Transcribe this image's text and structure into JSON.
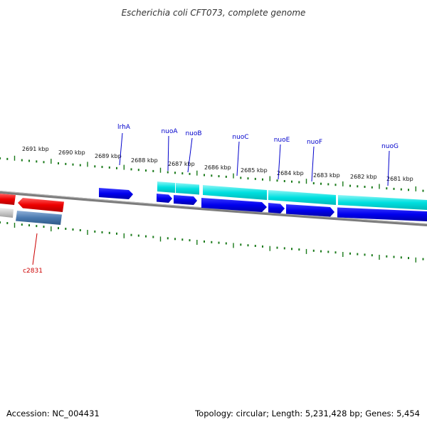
{
  "title": "Escherichia coli CFT073, complete genome",
  "accession": "Accession: NC_004431",
  "topology": "Topology: circular; Length: 5,231,428 bp; Genes: 5,454",
  "colors": {
    "forward_gene": "#0000ee",
    "forward_cds": "#00e5e5",
    "reverse_gene": "#ee0000",
    "reverse_cds": "#4a7ab0",
    "backbone": "#808080",
    "ticks": "#1a7a1a",
    "forward_label": "#0000cc",
    "reverse_label": "#cc0000"
  },
  "ticks": [
    "2691 kbp",
    "2690 kbp",
    "2689 kbp",
    "2688 kbp",
    "2687 kbp",
    "2686 kbp",
    "2685 kbp",
    "2684 kbp",
    "2683 kbp",
    "2682 kbp",
    "2681 kbp"
  ],
  "genes": {
    "forward": [
      "lrhA",
      "nuoA",
      "nuoB",
      "nuoC",
      "nuoE",
      "nuoF",
      "nuoG"
    ],
    "reverse": [
      "c2831"
    ]
  }
}
